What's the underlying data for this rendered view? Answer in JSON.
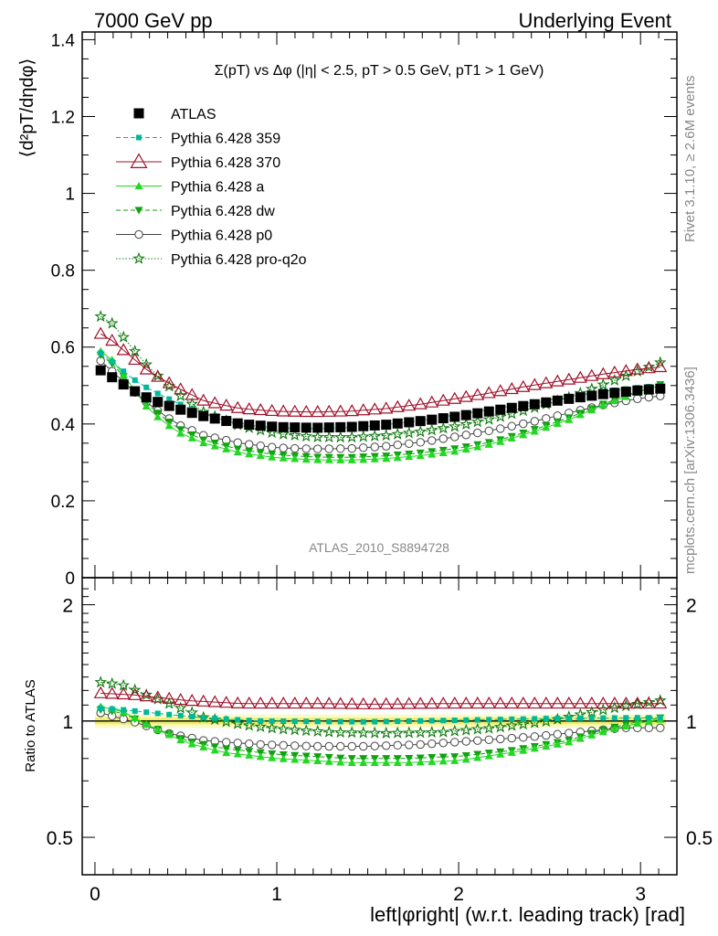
{
  "header": {
    "left": "7000 GeV pp",
    "right": "Underlying Event"
  },
  "side_labels": {
    "rivet": "Rivet 3.1.10, ≥ 2.6M events",
    "mcplots": "mcplots.cern.ch [arXiv:1306.3436]"
  },
  "colors": {
    "atlas": "#000000",
    "p359": "#00b89a",
    "p370": "#a0102a",
    "pa": "#22d822",
    "pdw": "#10a010",
    "pp0": "#444444",
    "pq2o": "#0e7a0e",
    "band_inner": "#f2ee6e",
    "band_outer": "#fafac8"
  },
  "chart_data": [
    {
      "type": "line",
      "panel": "main",
      "title": "Σ(pT) vs Δφ (|η| < 2.5, pT > 0.5 GeV, pT1 > 1 GeV)",
      "ylabel": "⟨d²pT/dηdφ⟩",
      "xlabel": "left|φright| (w.r.t. leading track) [rad]",
      "watermark": "ATLAS_2010_S8894728",
      "xlim": [
        -0.07,
        3.2
      ],
      "ylim": [
        0,
        1.42
      ],
      "yticks": [
        "0",
        "0.2",
        "0.4",
        "0.6",
        "0.8",
        "1",
        "1.2",
        "1.4"
      ],
      "xticks": [
        "0",
        "1",
        "2",
        "3"
      ],
      "grid": false,
      "legend_position": "top-left",
      "series": [
        {
          "name": "ATLAS",
          "key": "atlas",
          "marker": "square-filled",
          "line": "none",
          "anchors": [
            [
              0.03,
              0.54
            ],
            [
              0.1,
              0.52
            ],
            [
              0.2,
              0.49
            ],
            [
              0.3,
              0.465
            ],
            [
              0.45,
              0.44
            ],
            [
              0.6,
              0.42
            ],
            [
              0.8,
              0.4
            ],
            [
              1.0,
              0.392
            ],
            [
              1.2,
              0.39
            ],
            [
              1.4,
              0.392
            ],
            [
              1.6,
              0.398
            ],
            [
              1.8,
              0.408
            ],
            [
              2.0,
              0.42
            ],
            [
              2.2,
              0.435
            ],
            [
              2.4,
              0.45
            ],
            [
              2.6,
              0.465
            ],
            [
              2.8,
              0.478
            ],
            [
              3.0,
              0.488
            ],
            [
              3.11,
              0.492
            ]
          ]
        },
        {
          "name": "Pythia 6.428 359",
          "key": "p359",
          "marker": "square-small",
          "line": "dashed",
          "anchors": [
            [
              0.03,
              0.585
            ],
            [
              0.1,
              0.56
            ],
            [
              0.2,
              0.52
            ],
            [
              0.3,
              0.49
            ],
            [
              0.45,
              0.455
            ],
            [
              0.6,
              0.425
            ],
            [
              0.8,
              0.4
            ],
            [
              1.0,
              0.39
            ],
            [
              1.2,
              0.388
            ],
            [
              1.4,
              0.39
            ],
            [
              1.6,
              0.398
            ],
            [
              1.8,
              0.41
            ],
            [
              2.0,
              0.425
            ],
            [
              2.2,
              0.44
            ],
            [
              2.4,
              0.455
            ],
            [
              2.6,
              0.47
            ],
            [
              2.8,
              0.485
            ],
            [
              3.0,
              0.495
            ],
            [
              3.11,
              0.5
            ]
          ]
        },
        {
          "name": "Pythia 6.428 370",
          "key": "p370",
          "marker": "triangle-up-open",
          "line": "solid",
          "anchors": [
            [
              0.03,
              0.635
            ],
            [
              0.1,
              0.615
            ],
            [
              0.2,
              0.575
            ],
            [
              0.3,
              0.535
            ],
            [
              0.45,
              0.495
            ],
            [
              0.6,
              0.46
            ],
            [
              0.8,
              0.44
            ],
            [
              1.0,
              0.433
            ],
            [
              1.2,
              0.431
            ],
            [
              1.4,
              0.433
            ],
            [
              1.6,
              0.44
            ],
            [
              1.8,
              0.452
            ],
            [
              2.0,
              0.467
            ],
            [
              2.2,
              0.483
            ],
            [
              2.4,
              0.5
            ],
            [
              2.6,
              0.515
            ],
            [
              2.8,
              0.53
            ],
            [
              3.0,
              0.543
            ],
            [
              3.11,
              0.548
            ]
          ]
        },
        {
          "name": "Pythia 6.428 a",
          "key": "pa",
          "marker": "triangle-up-filled",
          "line": "solid",
          "anchors": [
            [
              0.03,
              0.59
            ],
            [
              0.1,
              0.565
            ],
            [
              0.2,
              0.5
            ],
            [
              0.3,
              0.435
            ],
            [
              0.45,
              0.38
            ],
            [
              0.6,
              0.35
            ],
            [
              0.8,
              0.325
            ],
            [
              1.0,
              0.312
            ],
            [
              1.2,
              0.307
            ],
            [
              1.4,
              0.306
            ],
            [
              1.6,
              0.31
            ],
            [
              1.8,
              0.318
            ],
            [
              2.0,
              0.33
            ],
            [
              2.2,
              0.35
            ],
            [
              2.4,
              0.378
            ],
            [
              2.6,
              0.41
            ],
            [
              2.8,
              0.45
            ],
            [
              3.0,
              0.485
            ],
            [
              3.11,
              0.5
            ]
          ]
        },
        {
          "name": "Pythia 6.428 dw",
          "key": "pdw",
          "marker": "triangle-down-filled",
          "line": "dashed",
          "anchors": [
            [
              0.03,
              0.58
            ],
            [
              0.1,
              0.555
            ],
            [
              0.2,
              0.5
            ],
            [
              0.3,
              0.445
            ],
            [
              0.45,
              0.39
            ],
            [
              0.6,
              0.358
            ],
            [
              0.8,
              0.333
            ],
            [
              1.0,
              0.32
            ],
            [
              1.2,
              0.314
            ],
            [
              1.4,
              0.313
            ],
            [
              1.6,
              0.317
            ],
            [
              1.8,
              0.325
            ],
            [
              2.0,
              0.337
            ],
            [
              2.2,
              0.355
            ],
            [
              2.4,
              0.383
            ],
            [
              2.6,
              0.415
            ],
            [
              2.8,
              0.453
            ],
            [
              3.0,
              0.488
            ],
            [
              3.11,
              0.503
            ]
          ]
        },
        {
          "name": "Pythia 6.428 p0",
          "key": "pp0",
          "marker": "circle-open",
          "line": "solid",
          "anchors": [
            [
              0.03,
              0.565
            ],
            [
              0.1,
              0.535
            ],
            [
              0.2,
              0.49
            ],
            [
              0.3,
              0.45
            ],
            [
              0.45,
              0.4
            ],
            [
              0.6,
              0.37
            ],
            [
              0.8,
              0.35
            ],
            [
              1.0,
              0.338
            ],
            [
              1.2,
              0.335
            ],
            [
              1.4,
              0.336
            ],
            [
              1.6,
              0.342
            ],
            [
              1.8,
              0.353
            ],
            [
              2.0,
              0.368
            ],
            [
              2.2,
              0.385
            ],
            [
              2.4,
              0.405
            ],
            [
              2.6,
              0.428
            ],
            [
              2.8,
              0.45
            ],
            [
              3.0,
              0.467
            ],
            [
              3.11,
              0.473
            ]
          ]
        },
        {
          "name": "Pythia 6.428 pro-q2o",
          "key": "pq2o",
          "marker": "star-open",
          "line": "dotted",
          "anchors": [
            [
              0.03,
              0.68
            ],
            [
              0.1,
              0.66
            ],
            [
              0.2,
              0.6
            ],
            [
              0.3,
              0.545
            ],
            [
              0.45,
              0.48
            ],
            [
              0.6,
              0.43
            ],
            [
              0.8,
              0.395
            ],
            [
              1.0,
              0.375
            ],
            [
              1.2,
              0.366
            ],
            [
              1.4,
              0.365
            ],
            [
              1.6,
              0.37
            ],
            [
              1.8,
              0.38
            ],
            [
              2.0,
              0.395
            ],
            [
              2.2,
              0.415
            ],
            [
              2.4,
              0.44
            ],
            [
              2.6,
              0.468
            ],
            [
              2.8,
              0.503
            ],
            [
              3.0,
              0.54
            ],
            [
              3.11,
              0.56
            ]
          ]
        }
      ]
    },
    {
      "type": "line",
      "panel": "ratio",
      "ylabel": "Ratio to ATLAS",
      "xlim": [
        -0.07,
        3.2
      ],
      "ylim": [
        0.4,
        2.35
      ],
      "yscale": "log",
      "yticks": [
        "0.5",
        "1",
        "2"
      ],
      "reference_line": 1,
      "series": [
        {
          "key": "p359",
          "anchors": [
            [
              0.03,
              1.08
            ],
            [
              0.15,
              1.07
            ],
            [
              0.4,
              1.04
            ],
            [
              0.6,
              1.02
            ],
            [
              0.9,
              1.0
            ],
            [
              1.5,
              0.995
            ],
            [
              2.0,
              1.005
            ],
            [
              2.5,
              1.015
            ],
            [
              3.0,
              1.02
            ],
            [
              3.11,
              1.02
            ]
          ]
        },
        {
          "key": "p370",
          "anchors": [
            [
              0.03,
              1.18
            ],
            [
              0.2,
              1.17
            ],
            [
              0.5,
              1.13
            ],
            [
              0.8,
              1.11
            ],
            [
              1.2,
              1.11
            ],
            [
              1.5,
              1.105
            ],
            [
              2.0,
              1.11
            ],
            [
              2.5,
              1.11
            ],
            [
              3.0,
              1.11
            ],
            [
              3.11,
              1.11
            ]
          ]
        },
        {
          "key": "pa",
          "anchors": [
            [
              0.03,
              1.09
            ],
            [
              0.15,
              1.06
            ],
            [
              0.3,
              0.97
            ],
            [
              0.5,
              0.88
            ],
            [
              0.7,
              0.83
            ],
            [
              1.0,
              0.8
            ],
            [
              1.4,
              0.78
            ],
            [
              1.7,
              0.78
            ],
            [
              2.0,
              0.79
            ],
            [
              2.3,
              0.83
            ],
            [
              2.6,
              0.88
            ],
            [
              2.8,
              0.94
            ],
            [
              3.0,
              0.99
            ],
            [
              3.11,
              1.01
            ]
          ]
        },
        {
          "key": "pdw",
          "anchors": [
            [
              0.03,
              1.07
            ],
            [
              0.15,
              1.05
            ],
            [
              0.3,
              0.97
            ],
            [
              0.5,
              0.89
            ],
            [
              0.7,
              0.85
            ],
            [
              1.0,
              0.82
            ],
            [
              1.4,
              0.8
            ],
            [
              1.7,
              0.8
            ],
            [
              2.0,
              0.81
            ],
            [
              2.3,
              0.84
            ],
            [
              2.6,
              0.89
            ],
            [
              2.8,
              0.95
            ],
            [
              3.0,
              1.0
            ],
            [
              3.11,
              1.02
            ]
          ]
        },
        {
          "key": "pp0",
          "anchors": [
            [
              0.03,
              1.05
            ],
            [
              0.2,
              1.0
            ],
            [
              0.4,
              0.93
            ],
            [
              0.6,
              0.89
            ],
            [
              0.9,
              0.87
            ],
            [
              1.2,
              0.86
            ],
            [
              1.5,
              0.86
            ],
            [
              1.8,
              0.87
            ],
            [
              2.1,
              0.89
            ],
            [
              2.4,
              0.91
            ],
            [
              2.7,
              0.94
            ],
            [
              2.9,
              0.96
            ],
            [
              3.11,
              0.96
            ]
          ]
        },
        {
          "key": "pq2o",
          "anchors": [
            [
              0.03,
              1.26
            ],
            [
              0.15,
              1.24
            ],
            [
              0.3,
              1.16
            ],
            [
              0.45,
              1.09
            ],
            [
              0.6,
              1.02
            ],
            [
              0.8,
              0.98
            ],
            [
              1.0,
              0.955
            ],
            [
              1.3,
              0.935
            ],
            [
              1.6,
              0.93
            ],
            [
              1.9,
              0.935
            ],
            [
              2.2,
              0.96
            ],
            [
              2.5,
              1.0
            ],
            [
              2.8,
              1.07
            ],
            [
              3.0,
              1.11
            ],
            [
              3.11,
              1.13
            ]
          ]
        }
      ]
    }
  ]
}
